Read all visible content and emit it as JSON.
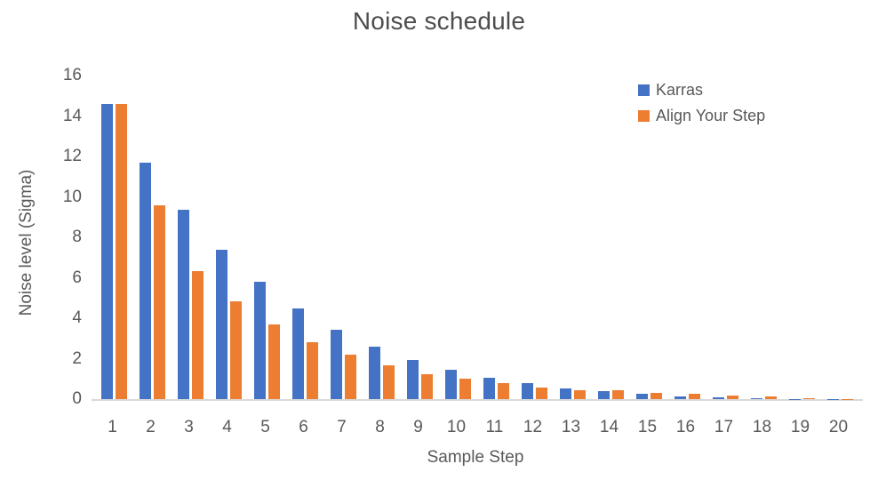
{
  "chart_data": {
    "type": "bar",
    "title": "Noise schedule",
    "xlabel": "Sample Step",
    "ylabel": "Noise level (Sigma)",
    "categories": [
      "1",
      "2",
      "3",
      "4",
      "5",
      "6",
      "7",
      "8",
      "9",
      "10",
      "11",
      "12",
      "13",
      "14",
      "15",
      "16",
      "17",
      "18",
      "19",
      "20"
    ],
    "series": [
      {
        "name": "Karras",
        "color": "#4472C4",
        "values": [
          14.6,
          11.7,
          9.35,
          7.4,
          5.8,
          4.5,
          3.45,
          2.6,
          1.95,
          1.45,
          1.05,
          0.78,
          0.52,
          0.38,
          0.25,
          0.15,
          0.08,
          0.04,
          0.02,
          0.01
        ]
      },
      {
        "name": "Align Your Step",
        "color": "#ED7D31",
        "values": [
          14.6,
          9.6,
          6.35,
          4.85,
          3.7,
          2.8,
          2.2,
          1.65,
          1.25,
          1.0,
          0.8,
          0.56,
          0.46,
          0.42,
          0.32,
          0.25,
          0.18,
          0.12,
          0.06,
          0.01
        ]
      }
    ],
    "ylim": [
      0,
      16
    ],
    "yticks": [
      0,
      2,
      4,
      6,
      8,
      10,
      12,
      14,
      16
    ],
    "grid": "off",
    "legend_position": "top-right",
    "axis_line_color": "#d9d9d9",
    "text_color": "#595959"
  }
}
